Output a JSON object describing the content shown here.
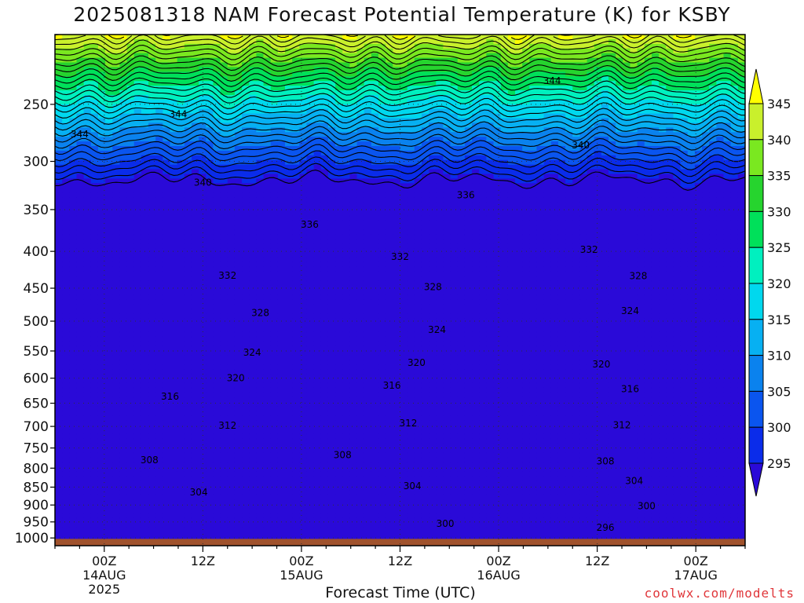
{
  "chart_data": {
    "type": "heatmap",
    "title": "2025081318 NAM Forecast Potential Temperature (K) for KSBY",
    "xlabel": "Forecast Time (UTC)",
    "ylabel": "",
    "credit": "coolwx.com/modelts",
    "units": "K",
    "x_axis": {
      "range_hours": [
        0,
        84
      ],
      "ticks": [
        {
          "hour": 6,
          "label": "00Z",
          "date": "14AUG",
          "year": "2025"
        },
        {
          "hour": 18,
          "label": "12Z",
          "date": "",
          "year": ""
        },
        {
          "hour": 30,
          "label": "00Z",
          "date": "15AUG",
          "year": ""
        },
        {
          "hour": 42,
          "label": "12Z",
          "date": "",
          "year": ""
        },
        {
          "hour": 54,
          "label": "00Z",
          "date": "16AUG",
          "year": ""
        },
        {
          "hour": 66,
          "label": "12Z",
          "date": "",
          "year": ""
        },
        {
          "hour": 78,
          "label": "00Z",
          "date": "17AUG",
          "year": ""
        }
      ]
    },
    "y_axis": {
      "scale": "log",
      "range_hpa": [
        1025,
        200
      ],
      "ticks": [
        250,
        300,
        350,
        400,
        450,
        500,
        550,
        600,
        650,
        700,
        750,
        800,
        850,
        900,
        950,
        1000
      ]
    },
    "colorbar": {
      "levels": [
        295,
        300,
        305,
        310,
        315,
        320,
        325,
        330,
        335,
        340,
        345
      ],
      "colors": [
        "#2a0ad8",
        "#0a2cea",
        "#0a55ef",
        "#0a82ee",
        "#07b0f2",
        "#00d8ee",
        "#00f0bf",
        "#00e05a",
        "#26d42e",
        "#7ae820",
        "#c9f02c",
        "#ffff00"
      ]
    },
    "contour_labels": [
      {
        "value": 344,
        "hour": 15,
        "p": 258
      },
      {
        "value": 344,
        "hour": 3,
        "p": 275
      },
      {
        "value": 344,
        "hour": 60.5,
        "p": 232
      },
      {
        "value": 340,
        "hour": 18,
        "p": 321
      },
      {
        "value": 340,
        "hour": 64,
        "p": 285
      },
      {
        "value": 336,
        "hour": 31,
        "p": 367
      },
      {
        "value": 336,
        "hour": 50,
        "p": 334
      },
      {
        "value": 332,
        "hour": 21,
        "p": 432
      },
      {
        "value": 332,
        "hour": 42,
        "p": 407
      },
      {
        "value": 332,
        "hour": 65,
        "p": 398
      },
      {
        "value": 328,
        "hour": 25,
        "p": 487
      },
      {
        "value": 328,
        "hour": 46,
        "p": 448
      },
      {
        "value": 328,
        "hour": 71,
        "p": 433
      },
      {
        "value": 324,
        "hour": 24,
        "p": 553
      },
      {
        "value": 324,
        "hour": 46.5,
        "p": 514
      },
      {
        "value": 324,
        "hour": 70,
        "p": 484
      },
      {
        "value": 320,
        "hour": 22,
        "p": 600
      },
      {
        "value": 320,
        "hour": 44,
        "p": 571
      },
      {
        "value": 320,
        "hour": 66.5,
        "p": 574
      },
      {
        "value": 316,
        "hour": 14,
        "p": 636
      },
      {
        "value": 316,
        "hour": 41,
        "p": 614
      },
      {
        "value": 316,
        "hour": 70,
        "p": 621
      },
      {
        "value": 312,
        "hour": 21,
        "p": 698
      },
      {
        "value": 312,
        "hour": 43,
        "p": 693
      },
      {
        "value": 312,
        "hour": 69,
        "p": 697
      },
      {
        "value": 308,
        "hour": 11.5,
        "p": 780
      },
      {
        "value": 308,
        "hour": 35,
        "p": 767
      },
      {
        "value": 308,
        "hour": 67,
        "p": 783
      },
      {
        "value": 304,
        "hour": 17.5,
        "p": 864
      },
      {
        "value": 304,
        "hour": 43.5,
        "p": 847
      },
      {
        "value": 304,
        "hour": 70.5,
        "p": 833
      },
      {
        "value": 300,
        "hour": 47.5,
        "p": 955
      },
      {
        "value": 300,
        "hour": 72,
        "p": 903
      },
      {
        "value": 296,
        "hour": 67,
        "p": 967
      }
    ]
  }
}
